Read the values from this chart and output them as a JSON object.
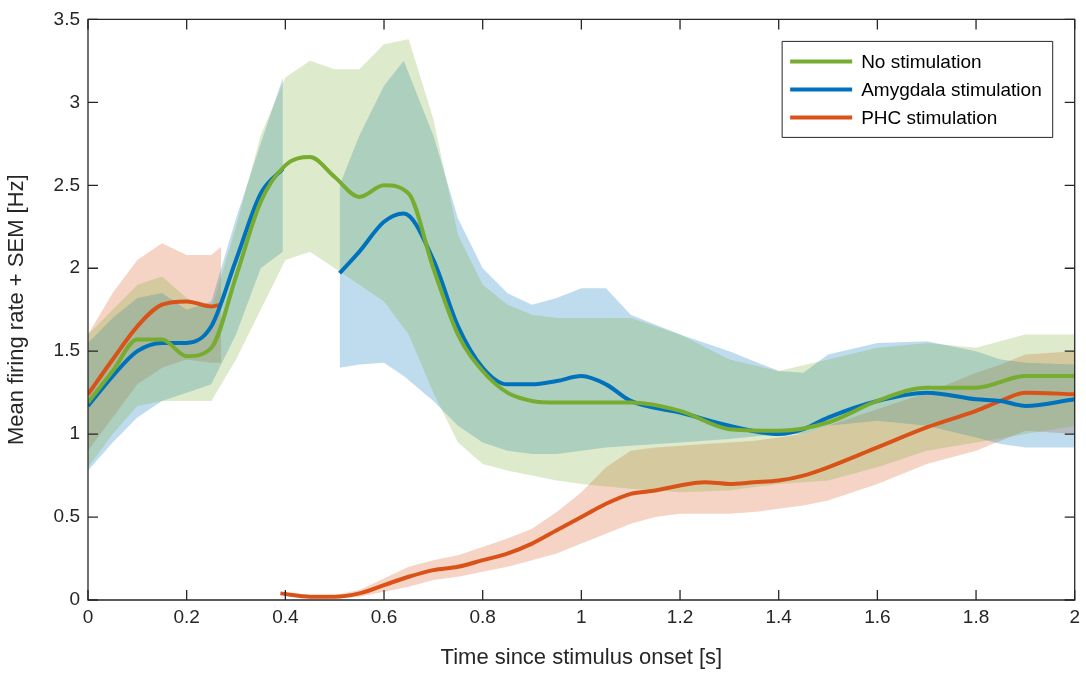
{
  "chart_data": {
    "type": "line",
    "xlabel": "Time since stimulus onset [s]",
    "ylabel": "Mean firing rate + SEM [Hz]",
    "xlim": [
      0,
      2
    ],
    "ylim": [
      0,
      3.5
    ],
    "xticks": [
      0,
      0.2,
      0.4,
      0.6,
      0.8,
      1,
      1.2,
      1.4,
      1.6,
      1.8,
      2
    ],
    "yticks": [
      0,
      0.5,
      1,
      1.5,
      2,
      2.5,
      3,
      3.5
    ],
    "grid": false,
    "legend": "top right",
    "marker": "none",
    "line_style": "solid",
    "series": [
      {
        "name": "No stimulation",
        "color": "#77ac30",
        "x": [
          0,
          0.05,
          0.1,
          0.15,
          0.2,
          0.25,
          0.3,
          0.35,
          0.4,
          0.45,
          0.5,
          0.55,
          0.6,
          0.65,
          0.7,
          0.75,
          0.8,
          0.85,
          0.9,
          0.95,
          1.0,
          1.1,
          1.2,
          1.3,
          1.4,
          1.5,
          1.6,
          1.7,
          1.8,
          1.9,
          2.0
        ],
        "values": [
          1.19,
          1.38,
          1.57,
          1.57,
          1.47,
          1.52,
          1.95,
          2.4,
          2.62,
          2.67,
          2.55,
          2.43,
          2.5,
          2.45,
          2.0,
          1.6,
          1.38,
          1.25,
          1.2,
          1.19,
          1.19,
          1.19,
          1.14,
          1.03,
          1.02,
          1.07,
          1.2,
          1.28,
          1.28,
          1.35,
          1.35
        ],
        "upper": [
          1.6,
          1.75,
          1.9,
          1.95,
          1.82,
          1.75,
          2.25,
          2.8,
          3.15,
          3.25,
          3.2,
          3.2,
          3.35,
          3.38,
          2.9,
          2.2,
          1.9,
          1.78,
          1.72,
          1.7,
          1.7,
          1.7,
          1.6,
          1.45,
          1.38,
          1.45,
          1.52,
          1.55,
          1.52,
          1.6,
          1.6
        ],
        "lower": [
          0.8,
          1.0,
          1.17,
          1.2,
          1.2,
          1.2,
          1.45,
          1.75,
          2.05,
          2.1,
          2.0,
          1.9,
          1.8,
          1.6,
          1.25,
          0.95,
          0.82,
          0.78,
          0.75,
          0.72,
          0.7,
          0.67,
          0.65,
          0.66,
          0.7,
          0.72,
          0.8,
          0.9,
          0.95,
          1.0,
          1.05
        ]
      },
      {
        "name": "Amygdala stimulation",
        "color": "#0072bd",
        "x": [
          0,
          0.05,
          0.1,
          0.15,
          0.2,
          0.25,
          0.3,
          0.35,
          0.395,
          0.45,
          0.51,
          0.55,
          0.6,
          0.64,
          0.7,
          0.75,
          0.8,
          0.85,
          0.9,
          0.95,
          1.0,
          1.05,
          1.1,
          1.2,
          1.3,
          1.4,
          1.45,
          1.5,
          1.6,
          1.7,
          1.8,
          1.85,
          1.9,
          2.0
        ],
        "values": [
          1.17,
          1.35,
          1.5,
          1.55,
          1.55,
          1.65,
          2.05,
          2.45,
          2.6,
          null,
          1.97,
          2.1,
          2.28,
          2.33,
          2.05,
          1.65,
          1.4,
          1.3,
          1.3,
          1.32,
          1.35,
          1.3,
          1.2,
          1.13,
          1.05,
          1.0,
          1.03,
          1.1,
          1.2,
          1.25,
          1.21,
          1.2,
          1.17,
          1.21
        ],
        "upper": [
          1.55,
          1.7,
          1.82,
          1.85,
          1.75,
          1.8,
          2.3,
          2.75,
          3.15,
          null,
          2.5,
          2.8,
          3.1,
          3.25,
          2.8,
          2.3,
          2.0,
          1.85,
          1.78,
          1.82,
          1.88,
          1.88,
          1.72,
          1.6,
          1.5,
          1.38,
          1.37,
          1.48,
          1.55,
          1.56,
          1.5,
          1.45,
          1.43,
          1.42
        ],
        "lower": [
          0.78,
          0.95,
          1.1,
          1.2,
          1.25,
          1.3,
          1.6,
          2.0,
          2.1,
          null,
          1.4,
          1.42,
          1.43,
          1.35,
          1.2,
          1.05,
          0.95,
          0.9,
          0.88,
          0.88,
          0.9,
          0.92,
          0.93,
          0.95,
          0.97,
          1.0,
          1.0,
          1.05,
          1.08,
          1.05,
          0.98,
          0.94,
          0.92,
          0.92
        ]
      },
      {
        "name": "PHC stimulation",
        "color": "#d95319",
        "x": [
          0,
          0.05,
          0.1,
          0.15,
          0.2,
          0.25,
          0.27,
          0.33,
          0.39,
          0.45,
          0.5,
          0.55,
          0.6,
          0.65,
          0.7,
          0.75,
          0.8,
          0.85,
          0.9,
          0.95,
          1.0,
          1.05,
          1.1,
          1.15,
          1.2,
          1.25,
          1.3,
          1.35,
          1.4,
          1.45,
          1.5,
          1.6,
          1.7,
          1.8,
          1.85,
          1.9,
          2.0
        ],
        "values": [
          1.24,
          1.45,
          1.65,
          1.78,
          1.8,
          1.77,
          1.78,
          null,
          0.04,
          0.02,
          0.02,
          0.04,
          0.09,
          0.14,
          0.18,
          0.2,
          0.24,
          0.28,
          0.34,
          0.42,
          0.5,
          0.58,
          0.64,
          0.66,
          0.69,
          0.71,
          0.7,
          0.71,
          0.72,
          0.75,
          0.8,
          0.92,
          1.04,
          1.14,
          1.2,
          1.25,
          1.24
        ],
        "upper": [
          1.6,
          1.85,
          2.05,
          2.15,
          2.08,
          2.08,
          2.13,
          null,
          0.05,
          0.03,
          0.03,
          0.06,
          0.13,
          0.2,
          0.24,
          0.27,
          0.32,
          0.37,
          0.43,
          0.53,
          0.65,
          0.8,
          0.9,
          0.92,
          0.93,
          0.94,
          0.95,
          0.96,
          0.98,
          1.0,
          1.05,
          1.15,
          1.25,
          1.37,
          1.42,
          1.48,
          1.5
        ],
        "lower": [
          0.9,
          1.1,
          1.3,
          1.4,
          1.45,
          1.43,
          1.43,
          null,
          0.03,
          0.01,
          0.01,
          0.02,
          0.05,
          0.08,
          0.12,
          0.14,
          0.17,
          0.2,
          0.24,
          0.28,
          0.34,
          0.4,
          0.46,
          0.5,
          0.52,
          0.52,
          0.52,
          0.53,
          0.55,
          0.57,
          0.6,
          0.7,
          0.82,
          0.9,
          0.96,
          1.02,
          1.0
        ]
      }
    ]
  }
}
